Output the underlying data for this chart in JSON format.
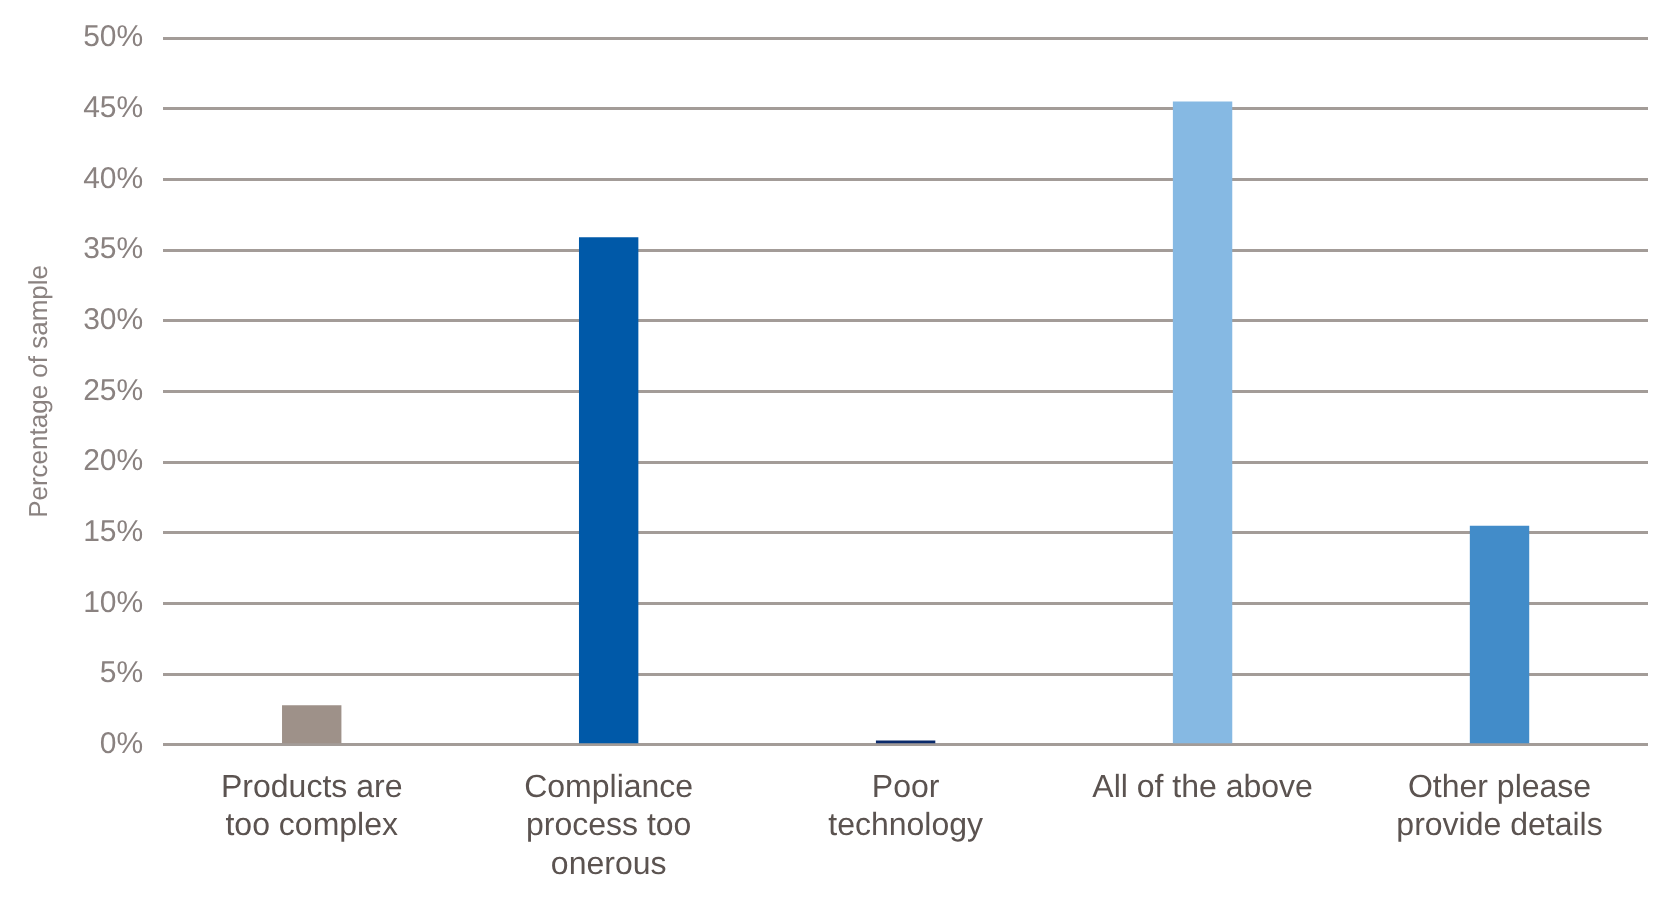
{
  "chart_data": {
    "type": "bar",
    "ylabel": "Percentage of sample",
    "categories": [
      "Products are too complex",
      "Compliance process too onerous",
      "Poor technology",
      "All of the above",
      "Other please provide details"
    ],
    "values": [
      2.8,
      35.9,
      0.3,
      45.5,
      15.5
    ],
    "colors": [
      "#9e9189",
      "#0059a8",
      "#0a2a6b",
      "#86b9e3",
      "#428cc9"
    ],
    "ylim": [
      0,
      50
    ],
    "yticks": [
      {
        "value": 0,
        "label": "0%"
      },
      {
        "value": 5,
        "label": "5%"
      },
      {
        "value": 10,
        "label": "10%"
      },
      {
        "value": 15,
        "label": "15%"
      },
      {
        "value": 20,
        "label": "20%"
      },
      {
        "value": 25,
        "label": "25%"
      },
      {
        "value": 30,
        "label": "30%"
      },
      {
        "value": 35,
        "label": "35%"
      },
      {
        "value": 40,
        "label": "40%"
      },
      {
        "value": 45,
        "label": "45%"
      },
      {
        "value": 50,
        "label": "50%"
      }
    ],
    "grid": "y",
    "legend": false
  }
}
